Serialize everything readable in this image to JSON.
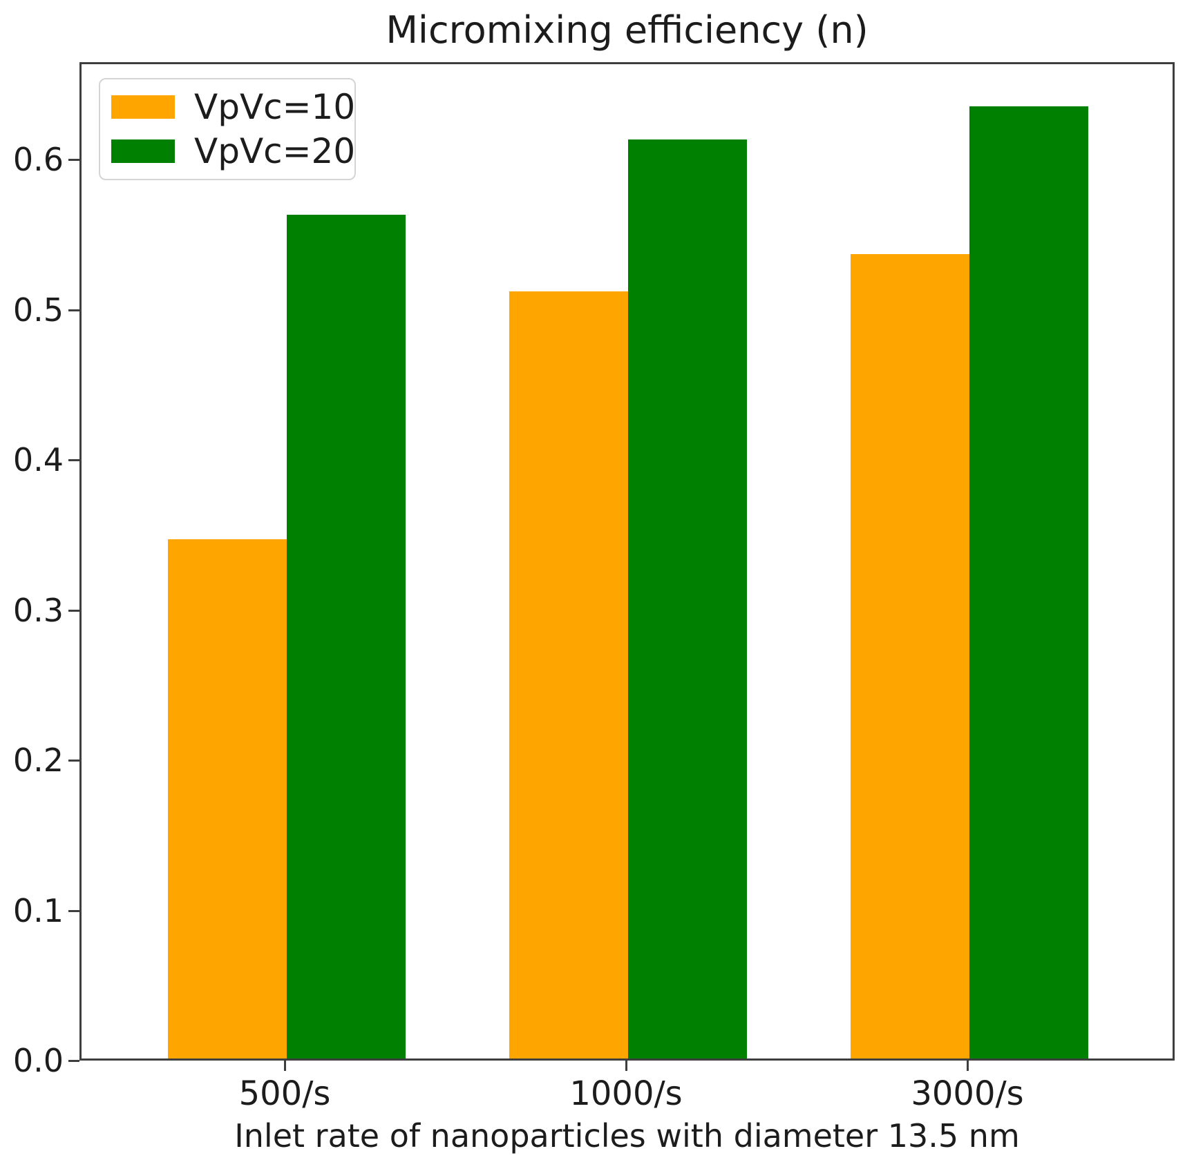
{
  "chart_data": {
    "type": "bar",
    "title": "Micromixing efficiency (n)",
    "xlabel": "Inlet rate of nanoparticles with diameter 13.5 nm",
    "ylabel": "",
    "categories": [
      "500/s",
      "1000/s",
      "3000/s"
    ],
    "series": [
      {
        "name": "VpVc=10",
        "color": "#FFA500",
        "values": [
          0.346,
          0.511,
          0.536
        ]
      },
      {
        "name": "VpVc=20",
        "color": "#008000",
        "values": [
          0.562,
          0.612,
          0.634
        ]
      }
    ],
    "ylim": [
      0,
      0.665
    ],
    "yticks": [
      0.0,
      0.1,
      0.2,
      0.3,
      0.4,
      0.5,
      0.6
    ],
    "ytick_format": "one-decimal",
    "legend_position": "upper-left",
    "grid": false,
    "colors": {
      "spine": "#3e3e3e",
      "text": "#1c1c1c",
      "background": "#ffffff"
    }
  }
}
